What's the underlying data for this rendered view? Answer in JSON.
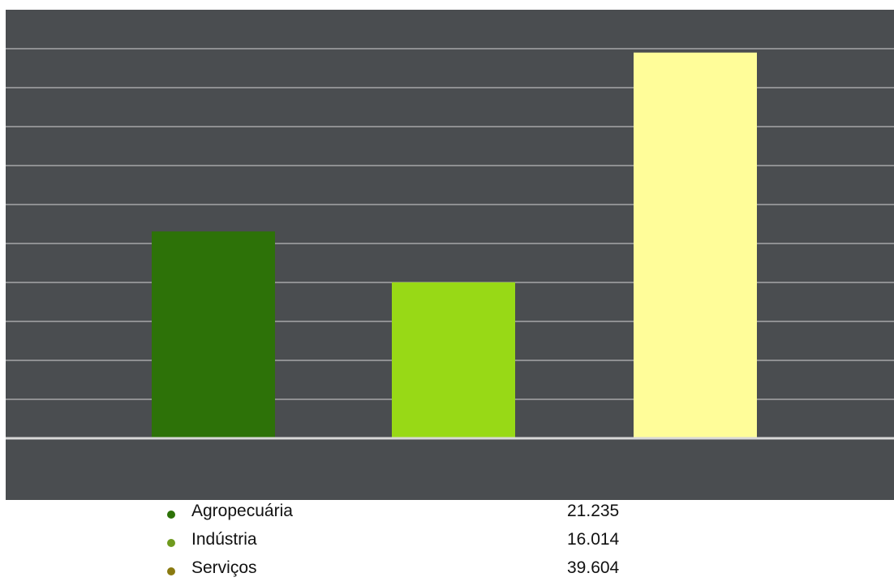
{
  "chart_data": {
    "type": "bar",
    "categories": [
      "Agropecuária",
      "Indústria",
      "Serviços"
    ],
    "values": [
      21.235,
      16.014,
      39.604
    ],
    "colors": [
      "#2d7208",
      "#98d916",
      "#fffd99"
    ],
    "legend_dot_colors": [
      "#2d7208",
      "#6f9a1e",
      "#8a7a10"
    ],
    "ylim": [
      0,
      40
    ],
    "grid": true,
    "legend_placement": "bottom",
    "background": "#4a4d50"
  }
}
